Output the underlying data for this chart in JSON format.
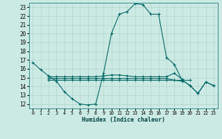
{
  "xlabel": "Humidex (Indice chaleur)",
  "background_color": "#cceae4",
  "grid_color": "#b0d4cc",
  "line_color": "#006666",
  "xlim": [
    -0.5,
    23.5
  ],
  "ylim": [
    11.5,
    23.5
  ],
  "xticks": [
    0,
    1,
    2,
    3,
    4,
    5,
    6,
    7,
    8,
    9,
    10,
    11,
    12,
    13,
    14,
    15,
    16,
    17,
    18,
    19,
    20,
    21,
    22,
    23
  ],
  "yticks": [
    12,
    13,
    14,
    15,
    16,
    17,
    18,
    19,
    20,
    21,
    22,
    23
  ],
  "line1_x": [
    0,
    1,
    2,
    3,
    4,
    5,
    6,
    7,
    8,
    9,
    10,
    11,
    12,
    13,
    14,
    15,
    16,
    17,
    18,
    19,
    20,
    21,
    22,
    23
  ],
  "line1_y": [
    16.7,
    15.9,
    15.2,
    14.6,
    13.4,
    12.6,
    12.0,
    11.9,
    12.0,
    15.5,
    20.0,
    22.2,
    22.5,
    23.4,
    23.3,
    22.2,
    22.2,
    17.3,
    16.5,
    14.7,
    14.1,
    13.2,
    14.5,
    14.1
  ],
  "line2_x": [
    2,
    3,
    4,
    5,
    6,
    7,
    8,
    9,
    10,
    11,
    12,
    13,
    14,
    15,
    16,
    17,
    18,
    19
  ],
  "line2_y": [
    15.1,
    15.1,
    15.1,
    15.1,
    15.1,
    15.1,
    15.1,
    15.2,
    15.3,
    15.3,
    15.2,
    15.1,
    15.1,
    15.1,
    15.1,
    15.1,
    15.5,
    14.8
  ],
  "line3_x": [
    2,
    3,
    4,
    5,
    6,
    7,
    8,
    9,
    10,
    11,
    12,
    13,
    14,
    15,
    16,
    17,
    18,
    19
  ],
  "line3_y": [
    14.9,
    14.9,
    14.9,
    14.9,
    14.9,
    14.9,
    14.9,
    14.9,
    14.9,
    14.9,
    14.9,
    14.9,
    14.9,
    14.9,
    14.9,
    14.9,
    14.7,
    14.6
  ],
  "line4_x": [
    2,
    3,
    4,
    5,
    6,
    7,
    8,
    9,
    10,
    11,
    12,
    13,
    14,
    15,
    16,
    17,
    18,
    19,
    20
  ],
  "line4_y": [
    14.7,
    14.7,
    14.7,
    14.7,
    14.7,
    14.7,
    14.7,
    14.7,
    14.7,
    14.7,
    14.7,
    14.7,
    14.7,
    14.7,
    14.7,
    14.7,
    14.7,
    14.7,
    14.7
  ],
  "line5_x": [
    19,
    20,
    21,
    22,
    23
  ],
  "line5_y": [
    14.7,
    14.1,
    13.2,
    14.5,
    14.1
  ]
}
